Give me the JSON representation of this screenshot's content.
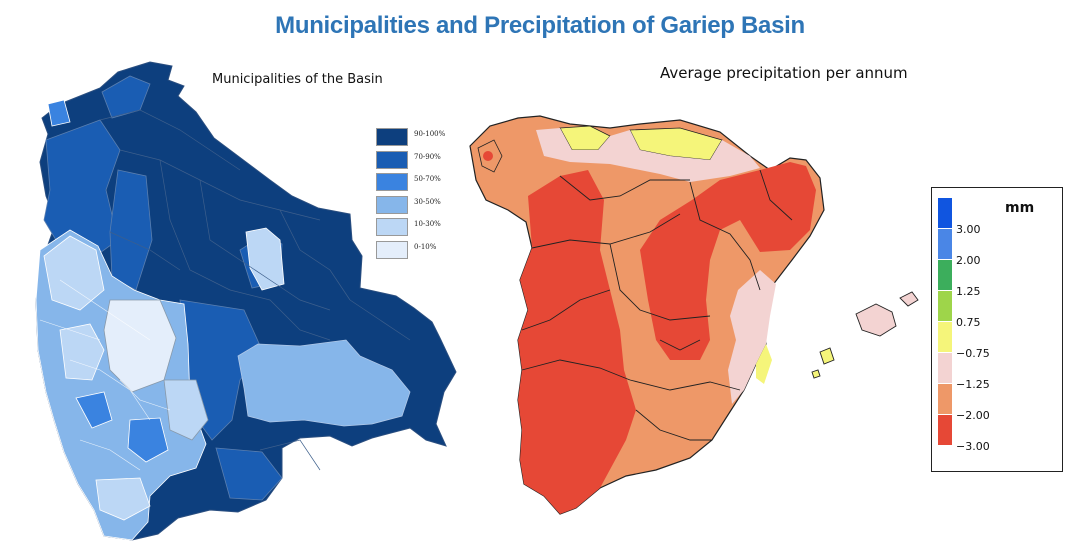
{
  "title": "Municipalities and Precipitation of Gariep Basin",
  "left_map": {
    "subtitle": "Municipalities of the Basin",
    "legend": [
      {
        "label": "90-100%",
        "color": "#0d3f7e"
      },
      {
        "label": "70-90%",
        "color": "#1a5db3"
      },
      {
        "label": "50-70%",
        "color": "#3a83e0"
      },
      {
        "label": "30-50%",
        "color": "#86b6ea"
      },
      {
        "label": "10-30%",
        "color": "#bcd7f5"
      },
      {
        "label": "0-10%",
        "color": "#e4eefb"
      }
    ]
  },
  "right_map": {
    "subtitle": "Average precipitation per annum",
    "legend_unit": "mm",
    "legend": [
      {
        "label": "",
        "color": "#1055e0"
      },
      {
        "label": "3.00",
        "color": "#4a86e6"
      },
      {
        "label": "2.00",
        "color": "#3cae5c"
      },
      {
        "label": "1.25",
        "color": "#9ed54a"
      },
      {
        "label": "0.75",
        "color": "#f5f57a"
      },
      {
        "label": "−0.75",
        "color": "#f3d3d2"
      },
      {
        "label": "−1.25",
        "color": "#ee9868"
      },
      {
        "label": "−2.00",
        "color": "#e64836"
      },
      {
        "label": "−3.00",
        "color": ""
      }
    ]
  }
}
